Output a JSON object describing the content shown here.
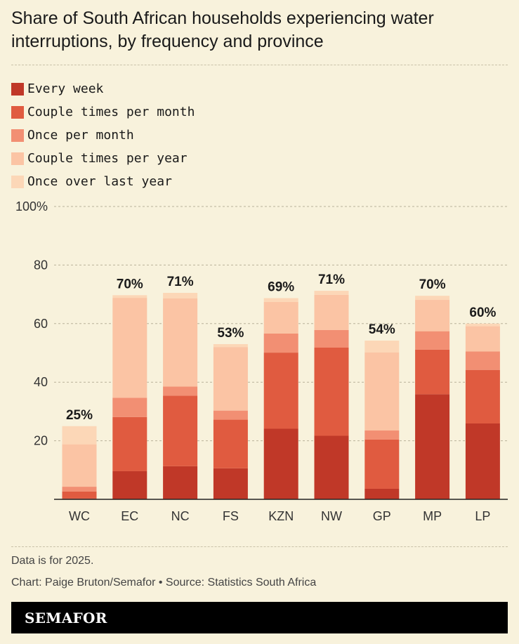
{
  "title": "Share of South African households experiencing water interruptions, by frequency and province",
  "legend": [
    {
      "label": "Every week",
      "color": "#c03828"
    },
    {
      "label": "Couple times per month",
      "color": "#e05b40"
    },
    {
      "label": "Once per month",
      "color": "#f28f73"
    },
    {
      "label": "Couple times per year",
      "color": "#fbc4a4"
    },
    {
      "label": "Once over last year",
      "color": "#fcd7b7"
    }
  ],
  "footnote": "Data is for 2025.",
  "credit": "Chart: Paige Bruton/Semafor • Source: Statistics South Africa",
  "brand": "SEMAFOR",
  "chart_data": {
    "type": "bar",
    "stacked": true,
    "categories": [
      "WC",
      "EC",
      "NC",
      "FS",
      "KZN",
      "NW",
      "GP",
      "MP",
      "LP"
    ],
    "series": [
      {
        "name": "Every week",
        "values": [
          0.3,
          9.6,
          11.3,
          10.6,
          24.1,
          21.7,
          3.6,
          35.9,
          25.9
        ]
      },
      {
        "name": "Couple times per month",
        "values": [
          2.4,
          18.5,
          24.1,
          16.6,
          26.0,
          30.1,
          16.8,
          15.2,
          18.3
        ]
      },
      {
        "name": "Once per month",
        "values": [
          1.6,
          6.6,
          3.1,
          3.1,
          6.5,
          6.0,
          3.1,
          6.3,
          6.3
        ]
      },
      {
        "name": "Couple times per year",
        "values": [
          14.5,
          34.1,
          30.1,
          21.7,
          10.8,
          12.0,
          26.7,
          10.7,
          8.6
        ]
      },
      {
        "name": "Once over last year",
        "values": [
          6.2,
          0.9,
          1.9,
          1.0,
          1.3,
          1.4,
          4.0,
          1.4,
          0.9
        ]
      }
    ],
    "totals": [
      "25%",
      "70%",
      "71%",
      "53%",
      "69%",
      "71%",
      "54%",
      "70%",
      "60%"
    ],
    "ylim": [
      0,
      100
    ],
    "yticks": [
      {
        "value": 20,
        "label": "20"
      },
      {
        "value": 40,
        "label": "40"
      },
      {
        "value": 60,
        "label": "60"
      },
      {
        "value": 80,
        "label": "80"
      },
      {
        "value": 100,
        "label": "100%"
      }
    ],
    "grid": true
  }
}
